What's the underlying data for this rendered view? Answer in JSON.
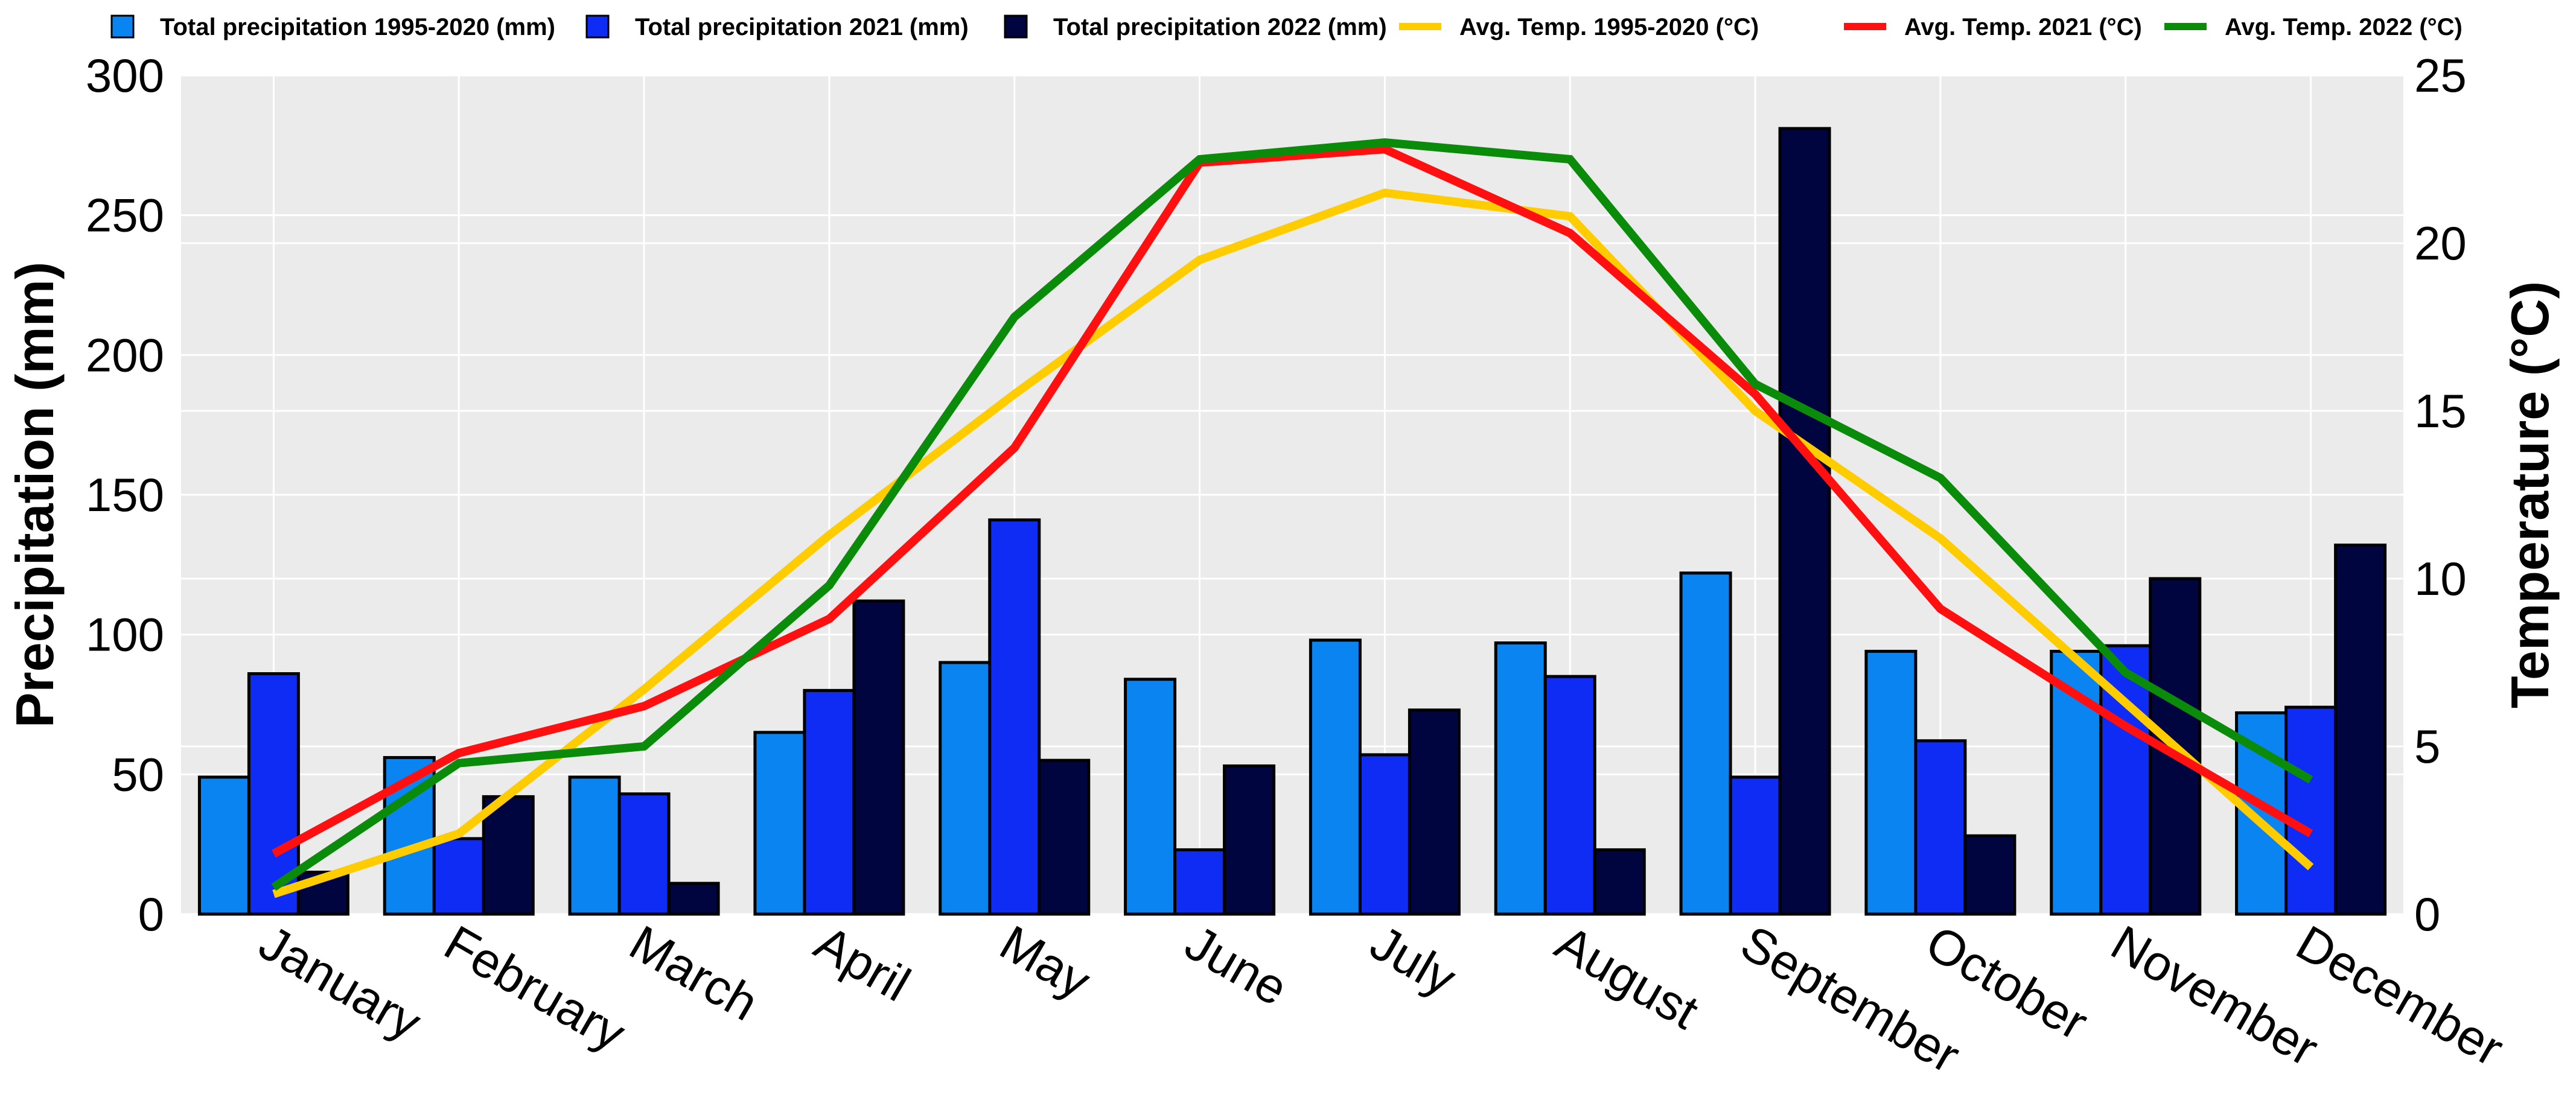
{
  "chart_data": {
    "type": "bar",
    "categories": [
      "January",
      "February",
      "March",
      "April",
      "May",
      "June",
      "July",
      "August",
      "September",
      "October",
      "November",
      "December"
    ],
    "series": [
      {
        "name": "Total precipitation 1995-2020 (mm)",
        "kind": "bar",
        "axis": "left",
        "color": "#0a84f0",
        "values": [
          49,
          56,
          49,
          65,
          90,
          84,
          98,
          97,
          122,
          94,
          94,
          72
        ]
      },
      {
        "name": "Total precipitation 2021 (mm)",
        "kind": "bar",
        "axis": "left",
        "color": "#0f2cf5",
        "values": [
          86,
          27,
          43,
          80,
          141,
          23,
          57,
          85,
          49,
          62,
          96,
          74
        ]
      },
      {
        "name": "Total precipitation 2022 (mm)",
        "kind": "bar",
        "axis": "left",
        "color": "#000540",
        "values": [
          15,
          42,
          11,
          112,
          55,
          53,
          73,
          23,
          281,
          28,
          120,
          132
        ]
      },
      {
        "name": "Avg. Temp. 1995-2020 (°C)",
        "kind": "line",
        "axis": "right",
        "color": "#ffcc00",
        "values": [
          0.6,
          2.4,
          6.7,
          11.3,
          15.5,
          19.5,
          21.5,
          20.8,
          15.0,
          11.2,
          6.3,
          1.4
        ]
      },
      {
        "name": "Avg. Temp. 2021 (°C)",
        "kind": "line",
        "axis": "right",
        "color": "#ff1010",
        "values": [
          1.8,
          4.8,
          6.2,
          8.8,
          13.9,
          22.4,
          22.8,
          20.3,
          15.5,
          9.1,
          5.6,
          2.4
        ]
      },
      {
        "name": "Avg. Temp. 2022 (°C)",
        "kind": "line",
        "axis": "right",
        "color": "#0a8c0a",
        "values": [
          0.8,
          4.5,
          5.0,
          9.8,
          17.8,
          22.5,
          23.0,
          22.5,
          15.8,
          13.0,
          7.2,
          4.0
        ]
      }
    ],
    "y_left": {
      "label": "Precipitation (mm)",
      "range": [
        0,
        300
      ],
      "ticks": [
        0,
        50,
        100,
        150,
        200,
        250,
        300
      ]
    },
    "y_right": {
      "label": "Temperature (°C)",
      "range": [
        0,
        25
      ],
      "ticks": [
        0,
        5,
        10,
        15,
        20,
        25
      ]
    },
    "grid": true,
    "legend_position": "top"
  }
}
